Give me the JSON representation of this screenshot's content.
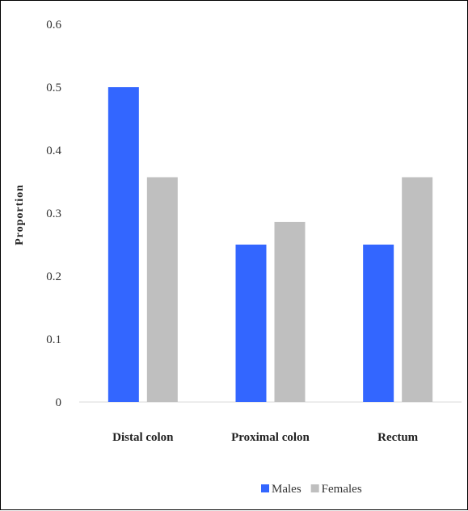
{
  "chart_data": {
    "type": "bar",
    "categories": [
      "Distal colon",
      "Proximal colon",
      "Rectum"
    ],
    "series": [
      {
        "name": "Males",
        "values": [
          0.5,
          0.25,
          0.25
        ],
        "color": "#3366ff"
      },
      {
        "name": "Females",
        "values": [
          0.357,
          0.286,
          0.357
        ],
        "color": "#bfbfbf"
      }
    ],
    "ylabel": "Proportion",
    "xlabel": "",
    "ylim": [
      0,
      0.6
    ],
    "yticks": [
      "0",
      "0.1",
      "0.2",
      "0.3",
      "0.4",
      "0.5",
      "0.6"
    ],
    "grid": false,
    "legend": "bottom"
  }
}
